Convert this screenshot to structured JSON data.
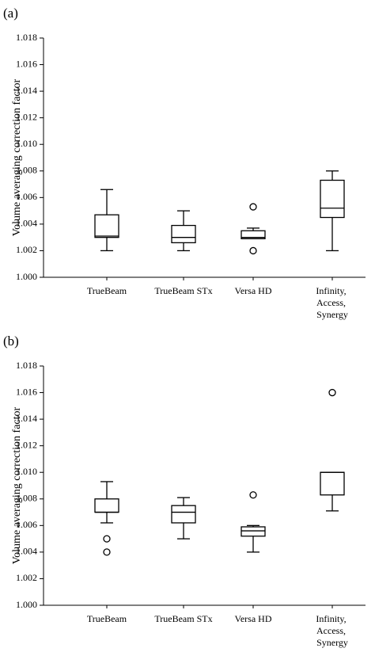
{
  "chart_data": [
    {
      "type": "box",
      "title": "(a)",
      "ylabel": "Volume averaging correction factor",
      "categories": [
        "TrueBeam",
        "TrueBeam STx",
        "Versa HD",
        "Infinity, Access, Synergy"
      ],
      "boxes": [
        {
          "min": 1.002,
          "q1": 1.003,
          "median": 1.0031,
          "q3": 1.0047,
          "max": 1.0066,
          "outliers": []
        },
        {
          "min": 1.002,
          "q1": 1.0026,
          "median": 1.003,
          "q3": 1.0039,
          "max": 1.005,
          "outliers": []
        },
        {
          "min": 1.0029,
          "q1": 1.0029,
          "median": 1.003,
          "q3": 1.0035,
          "max": 1.0037,
          "outliers": [
            1.0053,
            1.002
          ]
        },
        {
          "min": 1.002,
          "q1": 1.0045,
          "median": 1.0052,
          "q3": 1.0073,
          "max": 1.008,
          "outliers": []
        }
      ],
      "ylim": [
        1.0,
        1.018
      ],
      "yticks": [
        {
          "value": 1.0,
          "label": "1.000"
        },
        1.002,
        1.004,
        1.006,
        1.008,
        {
          "value": 1.01,
          "label": "1.010"
        },
        1.012,
        1.014,
        1.016,
        1.018
      ]
    },
    {
      "type": "box",
      "title": "(b)",
      "ylabel": "Volume averaging correction factor",
      "categories": [
        "TrueBeam",
        "TrueBeam STx",
        "Versa HD",
        "Infinity, Access, Synergy"
      ],
      "boxes": [
        {
          "min": 1.0062,
          "q1": 1.007,
          "median": 1.007,
          "q3": 1.008,
          "max": 1.0093,
          "outliers": [
            1.005,
            1.004
          ]
        },
        {
          "min": 1.005,
          "q1": 1.0062,
          "median": 1.007,
          "q3": 1.0075,
          "max": 1.0081,
          "outliers": []
        },
        {
          "min": 1.004,
          "q1": 1.0052,
          "median": 1.0056,
          "q3": 1.0059,
          "max": 1.006,
          "outliers": [
            1.0083
          ]
        },
        {
          "min": 1.0071,
          "q1": 1.0083,
          "median": 1.01,
          "q3": 1.01,
          "max": 1.01,
          "outliers": [
            1.016
          ]
        }
      ],
      "ylim": [
        1.0,
        1.018
      ],
      "yticks": [
        {
          "value": 1.0,
          "label": "1.000"
        },
        1.002,
        1.004,
        1.006,
        1.008,
        {
          "value": 1.01,
          "label": "1.010"
        },
        1.012,
        1.014,
        1.016,
        1.018
      ]
    }
  ]
}
